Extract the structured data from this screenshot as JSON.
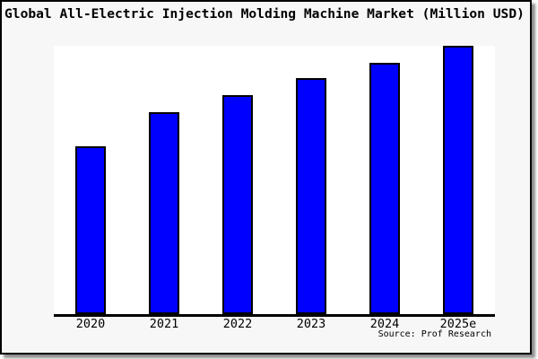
{
  "chart_data": {
    "type": "bar",
    "title": "Global All-Electric Injection Molding Machine Market (Million USD)",
    "categories": [
      "2020",
      "2021",
      "2022",
      "2023",
      "2024",
      "2025e"
    ],
    "values": [
      62.4,
      75.1,
      81.5,
      87.8,
      93.8,
      100.0
    ],
    "values_note": "No y-axis scale is shown in the image; values are bar heights measured as percent of the tallest (2025e) bar",
    "xlabel": "",
    "ylabel": "",
    "ylim": [
      0,
      100
    ],
    "grid": false,
    "legend": false,
    "y_axis_visible": false,
    "source": "Source: Prof Research"
  },
  "colors": {
    "figure_background": "#f7f7f7",
    "plot_background": "#ffffff",
    "bar_fill": "#0000ff",
    "bar_border": "#000000",
    "axis_line": "#000000",
    "text": "#000000",
    "frame_border": "#000000"
  }
}
